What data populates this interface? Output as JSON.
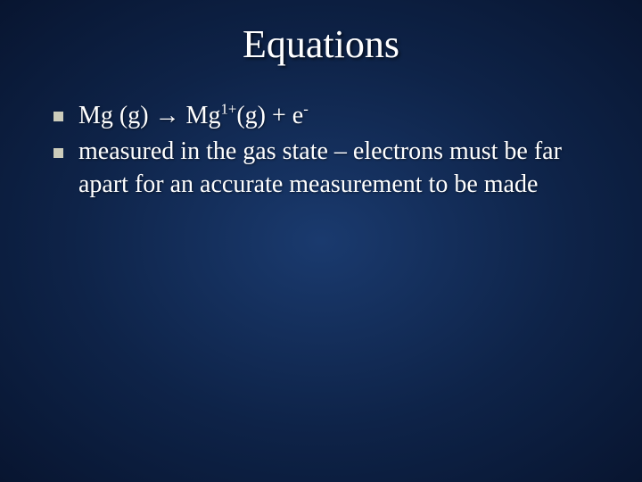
{
  "slide": {
    "title": "Equations",
    "title_color": "#ffffff",
    "title_fontsize": 44,
    "background_gradient": [
      "#1a3a6e",
      "#0e2348",
      "#081530"
    ],
    "bullet_marker_color": "#ccccbb",
    "bullet_fontsize": 28,
    "text_color": "#ffffff",
    "bullets": [
      {
        "prefix": "Mg (g) ",
        "arrow": "→",
        "mid": " Mg",
        "sup1": "1+",
        "after_sup1": "(g) + e",
        "sup2": "-"
      },
      {
        "text": "measured in the gas state – electrons must be far apart for an accurate measurement to be made"
      }
    ]
  }
}
